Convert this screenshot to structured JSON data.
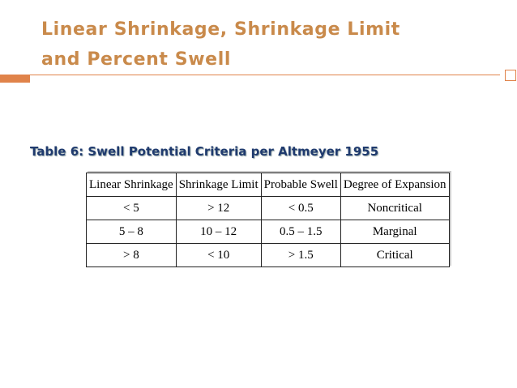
{
  "header": {
    "title_lines": [
      "Linear Shrinkage, Shrinkage Limit",
      "and Percent Swell"
    ]
  },
  "caption": "Table 6: Swell Potential Criteria per Altmeyer 1955",
  "table": {
    "columns": [
      "Linear Shrinkage",
      "Shrinkage Limit",
      "Probable Swell",
      "Degree of Expansion"
    ],
    "rows": [
      [
        "< 5",
        "> 12",
        "< 0.5",
        "Noncritical"
      ],
      [
        "5 – 8",
        "10 – 12",
        "0.5 – 1.5",
        "Marginal"
      ],
      [
        "> 8",
        "< 10",
        "> 1.5",
        "Critical"
      ]
    ]
  }
}
